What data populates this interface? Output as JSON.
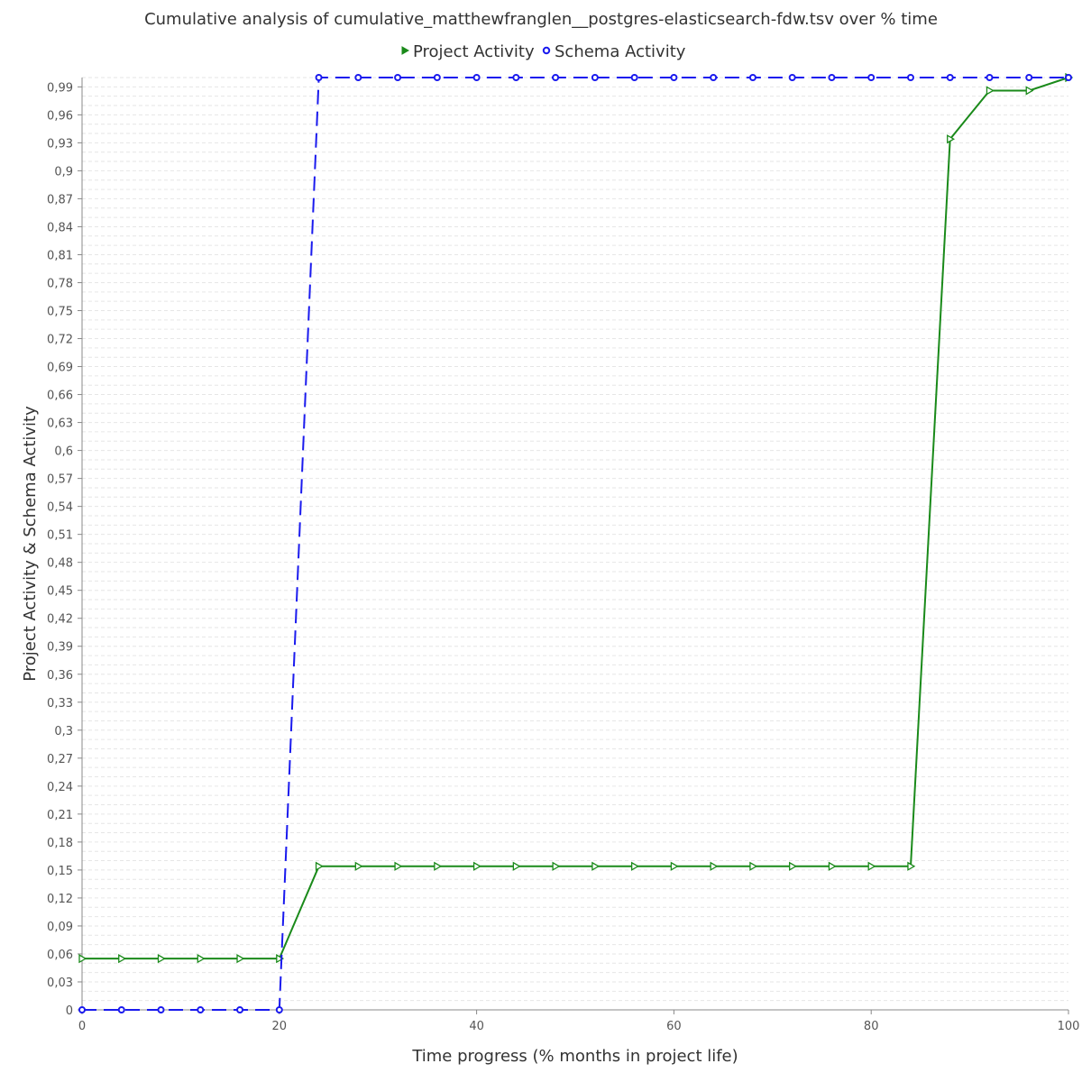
{
  "chart_data": {
    "type": "line",
    "title": "Cumulative analysis of cumulative_matthewfranglen__postgres-elasticsearch-fdw.tsv over % time",
    "xlabel": "Time progress (% months in project life)",
    "ylabel": "Project Activity & Schema Activity",
    "xlim": [
      0,
      100
    ],
    "ylim": [
      0,
      1
    ],
    "x_ticks": [
      0,
      20,
      40,
      60,
      80,
      100
    ],
    "x_tick_labels": [
      "0",
      "20",
      "40",
      "60",
      "80",
      "100"
    ],
    "y_ticks": [
      0,
      0.03,
      0.06,
      0.09,
      0.12,
      0.15,
      0.18,
      0.21,
      0.24,
      0.27,
      0.3,
      0.33,
      0.36,
      0.39,
      0.42,
      0.45,
      0.48,
      0.51,
      0.54,
      0.57,
      0.6,
      0.63,
      0.66,
      0.69,
      0.72,
      0.75,
      0.78,
      0.81,
      0.84,
      0.87,
      0.9,
      0.93,
      0.96,
      0.99
    ],
    "y_tick_labels": [
      "0",
      "0,03",
      "0,06",
      "0,09",
      "0,12",
      "0,15",
      "0,18",
      "0,21",
      "0,24",
      "0,27",
      "0,3",
      "0,33",
      "0,36",
      "0,39",
      "0,42",
      "0,45",
      "0,48",
      "0,51",
      "0,54",
      "0,57",
      "0,6",
      "0,63",
      "0,66",
      "0,69",
      "0,72",
      "0,75",
      "0,78",
      "0,81",
      "0,84",
      "0,87",
      "0,9",
      "0,93",
      "0,96",
      "0,99"
    ],
    "grid": true,
    "legend_position": "top-center",
    "series": [
      {
        "name": "Project Activity",
        "color": "#1a8a1a",
        "marker": "triangle-right",
        "line_style": "solid",
        "x": [
          0,
          4,
          8,
          12,
          16,
          20,
          24,
          28,
          32,
          36,
          40,
          44,
          48,
          52,
          56,
          60,
          64,
          68,
          72,
          76,
          80,
          84,
          88,
          92,
          96,
          100
        ],
        "values": [
          0.055,
          0.055,
          0.055,
          0.055,
          0.055,
          0.055,
          0.154,
          0.154,
          0.154,
          0.154,
          0.154,
          0.154,
          0.154,
          0.154,
          0.154,
          0.154,
          0.154,
          0.154,
          0.154,
          0.154,
          0.154,
          0.154,
          0.934,
          0.986,
          0.986,
          1.0
        ]
      },
      {
        "name": "Schema Activity",
        "color": "#1a1aee",
        "marker": "circle",
        "line_style": "dashed",
        "x": [
          0,
          4,
          8,
          12,
          16,
          20,
          24,
          28,
          32,
          36,
          40,
          44,
          48,
          52,
          56,
          60,
          64,
          68,
          72,
          76,
          80,
          84,
          88,
          92,
          96,
          100
        ],
        "values": [
          0,
          0,
          0,
          0,
          0,
          0,
          1.0,
          1.0,
          1.0,
          1.0,
          1.0,
          1.0,
          1.0,
          1.0,
          1.0,
          1.0,
          1.0,
          1.0,
          1.0,
          1.0,
          1.0,
          1.0,
          1.0,
          1.0,
          1.0,
          1.0
        ]
      }
    ]
  }
}
